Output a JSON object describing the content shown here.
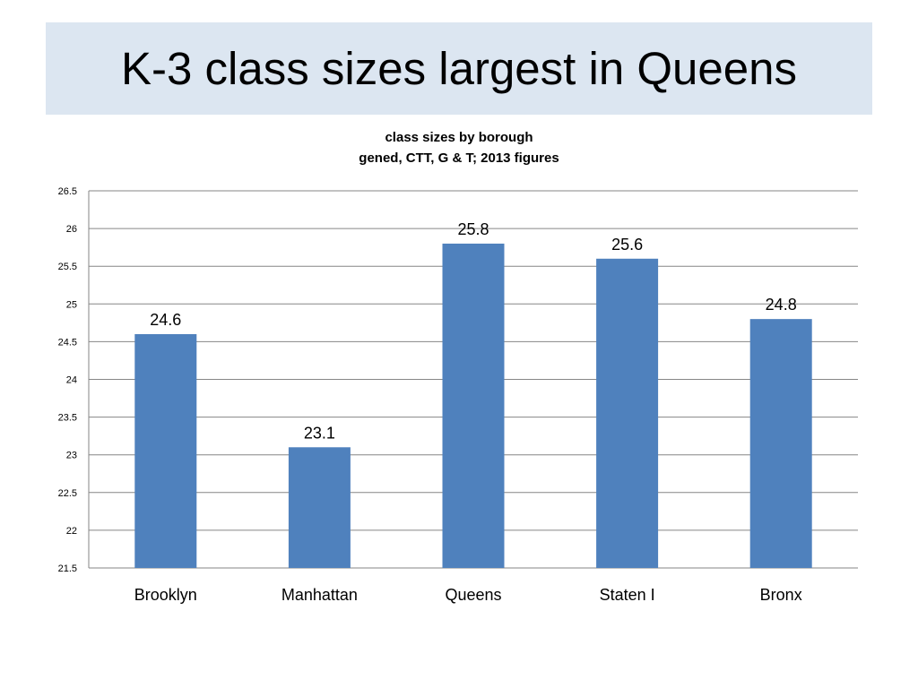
{
  "slide": {
    "title": "K-3 class sizes largest in Queens"
  },
  "colors": {
    "title_band": "#dce6f1",
    "bar": "#4f81bd",
    "grid": "#868686",
    "text": "#000000"
  },
  "chart_data": {
    "type": "bar",
    "title": "class sizes by borough",
    "subtitle": "gened, CTT, G & T; 2013 figures",
    "xlabel": "",
    "ylabel": "",
    "categories": [
      "Brooklyn",
      "Manhattan",
      "Queens",
      "Staten I",
      "Bronx"
    ],
    "values": [
      24.6,
      23.1,
      25.8,
      25.6,
      24.8
    ],
    "data_labels": [
      "24.6",
      "23.1",
      "25.8",
      "25.6",
      "24.8"
    ],
    "ylim": [
      21.5,
      26.5
    ],
    "yticks": [
      21.5,
      22,
      22.5,
      23,
      23.5,
      24,
      24.5,
      25,
      25.5,
      26,
      26.5
    ],
    "ytick_labels": [
      "21.5",
      "22",
      "22.5",
      "23",
      "23.5",
      "24",
      "24.5",
      "25",
      "25.5",
      "26",
      "26.5"
    ],
    "grid": true,
    "legend": "none"
  }
}
